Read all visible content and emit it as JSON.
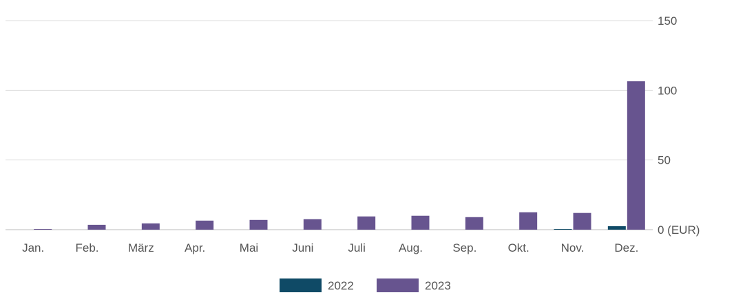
{
  "chart_data": {
    "type": "bar",
    "categories": [
      "Jan.",
      "Feb.",
      "März",
      "Apr.",
      "Mai",
      "Juni",
      "Juli",
      "Aug.",
      "Sep.",
      "Okt.",
      "Nov.",
      "Dez."
    ],
    "series": [
      {
        "name": "2022",
        "color": "#0f4a66",
        "values": [
          0,
          0,
          0,
          0,
          0,
          0,
          0,
          0,
          0,
          0,
          0.5,
          2.5
        ]
      },
      {
        "name": "2023",
        "color": "#67548f",
        "values": [
          0.5,
          3.5,
          4.5,
          6.5,
          7,
          7.5,
          9.5,
          10,
          9,
          12.5,
          12,
          106.5
        ]
      }
    ],
    "y_ticks": [
      {
        "value": 150,
        "label": "150"
      },
      {
        "value": 100,
        "label": "100"
      },
      {
        "value": 50,
        "label": "50"
      },
      {
        "value": 0,
        "label": "0 (EUR)"
      }
    ],
    "ylim": [
      0,
      150
    ],
    "title": "",
    "xlabel": "",
    "ylabel": "",
    "grid": true,
    "legend_position": "bottom"
  }
}
